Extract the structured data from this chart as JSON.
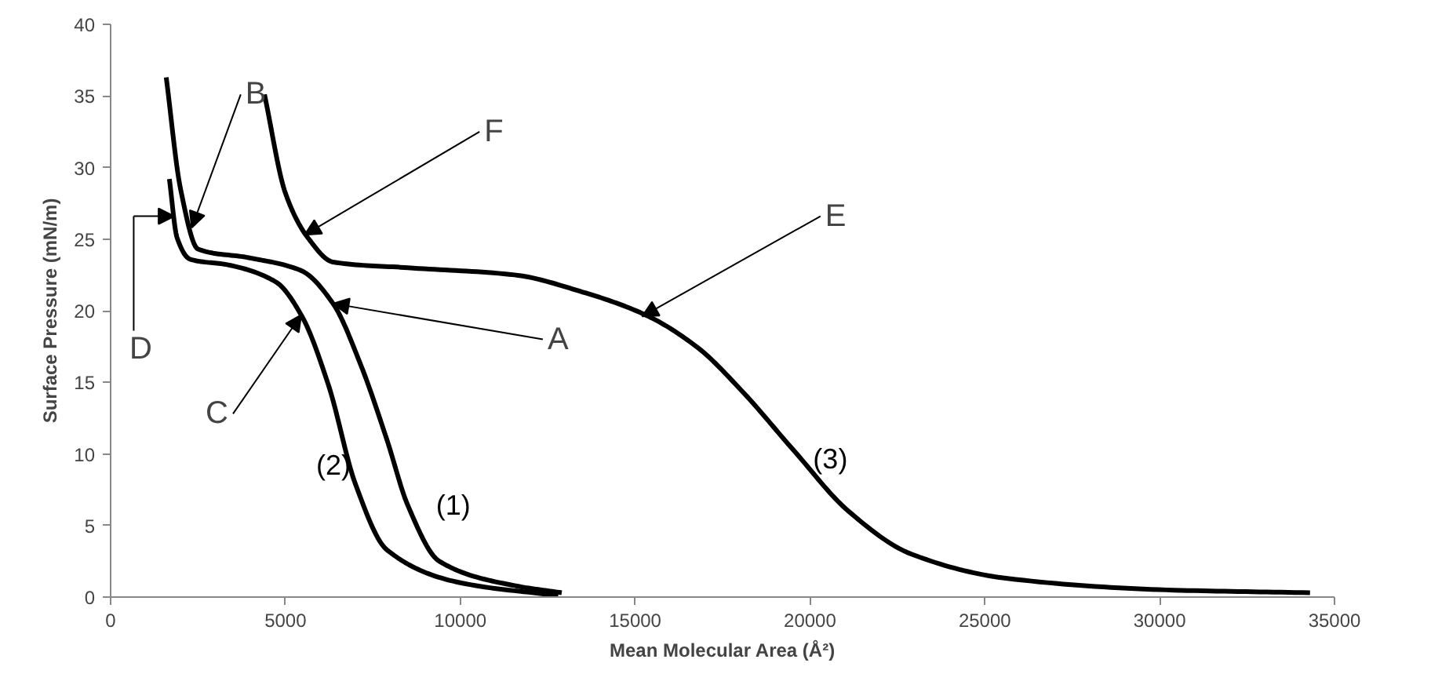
{
  "chart_data": {
    "type": "line",
    "xlabel": "Mean Molecular Area (Å²)",
    "ylabel": "Surface Pressure (mN/m)",
    "xlim": [
      0,
      35000
    ],
    "ylim": [
      0,
      40
    ],
    "xticks": [
      0,
      5000,
      10000,
      15000,
      20000,
      25000,
      30000,
      35000
    ],
    "yticks": [
      0,
      5,
      10,
      15,
      20,
      25,
      30,
      35,
      40
    ],
    "grid": false,
    "line_style": "solid",
    "series": [
      {
        "name": "(1)",
        "color": "#000000",
        "x": [
          1590,
          2000,
          2500,
          3950,
          5450,
          6360,
          7140,
          7900,
          8500,
          9400,
          11550,
          12900
        ],
        "values": [
          36.3,
          28.5,
          24.3,
          23.7,
          22.8,
          20.5,
          16.3,
          11.0,
          6.4,
          2.5,
          0.8,
          0.3
        ]
      },
      {
        "name": "(2)",
        "color": "#000000",
        "x": [
          1680,
          1900,
          2270,
          3360,
          4730,
          5450,
          6230,
          7000,
          7900,
          10000,
          12800
        ],
        "values": [
          29.2,
          25.1,
          23.6,
          23.2,
          22.0,
          19.7,
          14.8,
          7.9,
          3.3,
          1.0,
          0.1
        ]
      },
      {
        "name": "(3)",
        "color": "#000000",
        "x": [
          4400,
          5000,
          5640,
          6360,
          8500,
          11550,
          13500,
          15300,
          16800,
          18050,
          19550,
          21100,
          22900,
          25650,
          30200,
          34300
        ],
        "values": [
          35.1,
          28.2,
          25.1,
          23.4,
          23.0,
          22.5,
          21.3,
          19.7,
          17.4,
          14.4,
          10.2,
          6.0,
          3.0,
          1.3,
          0.5,
          0.3
        ]
      }
    ],
    "annotations": [
      {
        "text": "A",
        "x": 6360,
        "y": 20.5
      },
      {
        "text": "B",
        "x": 2320,
        "y": 25.8
      },
      {
        "text": "C",
        "x": 5450,
        "y": 19.7
      },
      "D",
      {
        "text": "E",
        "x": 15200,
        "y": 19.6
      },
      {
        "text": "F",
        "x": 5550,
        "y": 25.3
      }
    ]
  }
}
